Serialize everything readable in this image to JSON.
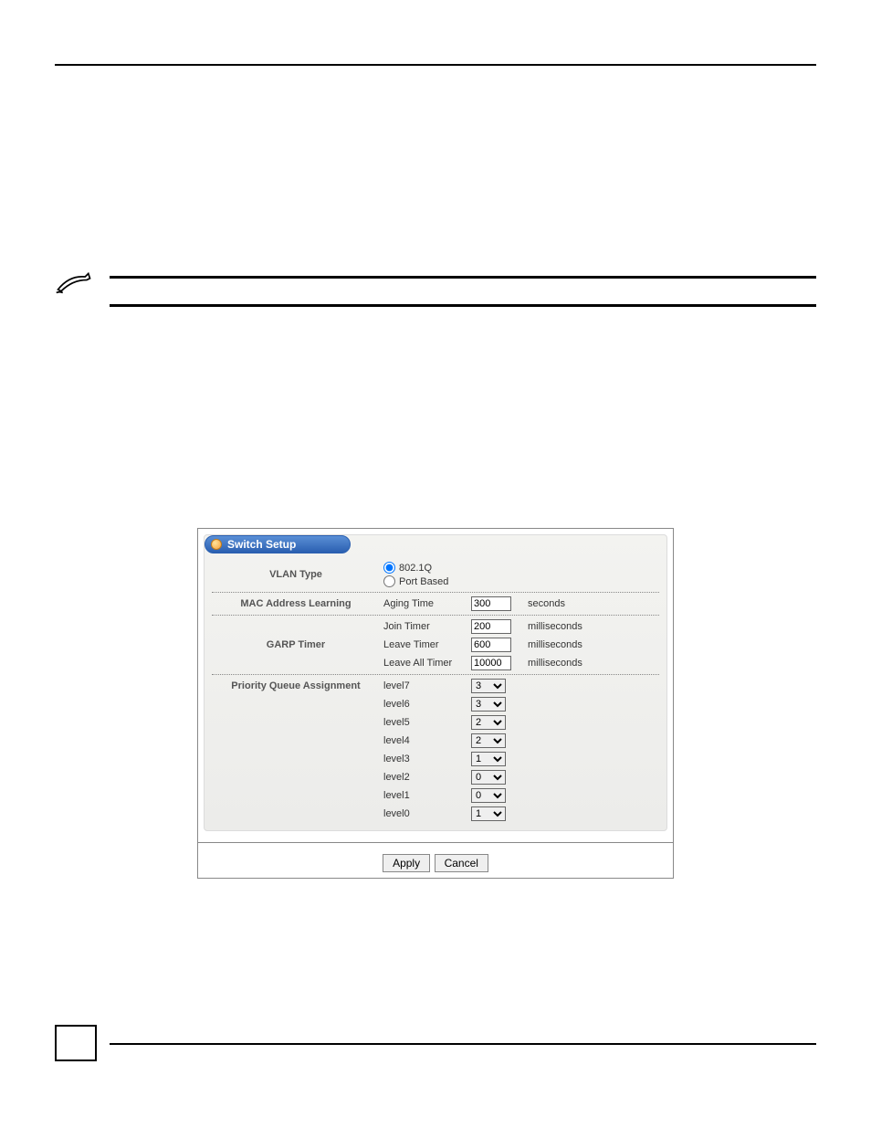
{
  "panel": {
    "title": "Switch Setup",
    "vlan_type_label": "VLAN Type",
    "vlan_options": {
      "opt1": "802.1Q",
      "opt2": "Port Based"
    },
    "mac_learning_label": "MAC Address Learning",
    "mac_learning_sub": "Aging Time",
    "mac_learning_value": "300",
    "mac_learning_unit": "seconds",
    "garp_label": "GARP Timer",
    "garp_rows": [
      {
        "sub": "Join Timer",
        "value": "200",
        "unit": "milliseconds"
      },
      {
        "sub": "Leave Timer",
        "value": "600",
        "unit": "milliseconds"
      },
      {
        "sub": "Leave All Timer",
        "value": "10000",
        "unit": "milliseconds"
      }
    ],
    "pqa_label": "Priority Queue Assignment",
    "pqa_levels": [
      {
        "label": "level7",
        "value": "3"
      },
      {
        "label": "level6",
        "value": "3"
      },
      {
        "label": "level5",
        "value": "2"
      },
      {
        "label": "level4",
        "value": "2"
      },
      {
        "label": "level3",
        "value": "1"
      },
      {
        "label": "level2",
        "value": "0"
      },
      {
        "label": "level1",
        "value": "0"
      },
      {
        "label": "level0",
        "value": "1"
      }
    ],
    "select_options": [
      "0",
      "1",
      "2",
      "3"
    ],
    "buttons": {
      "apply": "Apply",
      "cancel": "Cancel"
    }
  },
  "colors": {
    "header_gradient_top": "#5a8fd6",
    "header_gradient_bottom": "#2a5fb0",
    "panel_bg_top": "#f3f3f0",
    "panel_bg_bottom": "#ececea",
    "bullet_outer": "#f8a13a",
    "border": "#888888"
  }
}
